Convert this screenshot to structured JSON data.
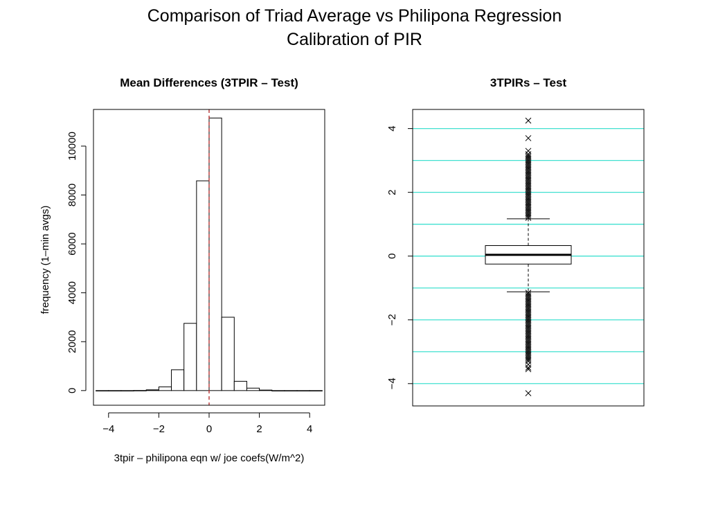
{
  "slide": {
    "title_line1": "Comparison of Triad Average vs Philipona Regression",
    "title_line2": "Calibration of PIR"
  },
  "chart_data": [
    {
      "type": "bar",
      "subtype": "histogram",
      "title": "Mean Differences (3TPIR – Test)",
      "xlabel": "3tpir – philipona eqn w/ joe coefs(W/m^2)",
      "ylabel": "frequency (1–min avgs)",
      "xlim": [
        -4.6,
        4.6
      ],
      "ylim": [
        -600,
        11500
      ],
      "xticks": [
        -4,
        -2,
        0,
        2,
        4
      ],
      "xtick_labels": [
        "−4",
        "−2",
        "0",
        "2",
        "4"
      ],
      "yticks": [
        0,
        2000,
        4000,
        6000,
        8000,
        10000
      ],
      "ytick_labels": [
        "0",
        "2000",
        "4000",
        "6000",
        "8000",
        "10000"
      ],
      "bins": [
        {
          "x0": -4.5,
          "x1": -4.0,
          "count": 0
        },
        {
          "x0": -4.0,
          "x1": -3.5,
          "count": 0
        },
        {
          "x0": -3.5,
          "x1": -3.0,
          "count": 0
        },
        {
          "x0": -3.0,
          "x1": -2.5,
          "count": 5
        },
        {
          "x0": -2.5,
          "x1": -2.0,
          "count": 30
        },
        {
          "x0": -2.0,
          "x1": -1.5,
          "count": 150
        },
        {
          "x0": -1.5,
          "x1": -1.0,
          "count": 850
        },
        {
          "x0": -1.0,
          "x1": -0.5,
          "count": 2750
        },
        {
          "x0": -0.5,
          "x1": 0.0,
          "count": 8580
        },
        {
          "x0": 0.0,
          "x1": 0.5,
          "count": 11150
        },
        {
          "x0": 0.5,
          "x1": 1.0,
          "count": 3000
        },
        {
          "x0": 1.0,
          "x1": 1.5,
          "count": 380
        },
        {
          "x0": 1.5,
          "x1": 2.0,
          "count": 100
        },
        {
          "x0": 2.0,
          "x1": 2.5,
          "count": 20
        },
        {
          "x0": 2.5,
          "x1": 3.0,
          "count": 0
        },
        {
          "x0": 3.0,
          "x1": 3.5,
          "count": 0
        },
        {
          "x0": 3.5,
          "x1": 4.0,
          "count": 0
        },
        {
          "x0": 4.0,
          "x1": 4.5,
          "count": 0
        }
      ],
      "reference_line": {
        "x": 0,
        "style": "dashed",
        "color": "#b22222"
      },
      "grid": false
    },
    {
      "type": "box",
      "title": "3TPIRs – Test",
      "ylim": [
        -4.7,
        4.6
      ],
      "yticks": [
        -4,
        -2,
        0,
        2,
        4
      ],
      "ytick_labels": [
        "−4",
        "−2",
        "0",
        "2",
        "4"
      ],
      "box": {
        "median": 0.04,
        "q1": -0.25,
        "q3": 0.33,
        "whisker_low": -1.12,
        "whisker_high": 1.17
      },
      "outliers_high": [
        1.2,
        1.25,
        1.3,
        1.35,
        1.4,
        1.45,
        1.5,
        1.55,
        1.6,
        1.65,
        1.7,
        1.75,
        1.8,
        1.85,
        1.9,
        1.95,
        2.0,
        2.05,
        2.1,
        2.15,
        2.2,
        2.25,
        2.3,
        2.35,
        2.4,
        2.45,
        2.5,
        2.55,
        2.6,
        2.65,
        2.7,
        2.75,
        2.8,
        2.85,
        2.9,
        2.95,
        3.0,
        3.05,
        3.1,
        3.15,
        3.2,
        3.3,
        3.7,
        4.25
      ],
      "outliers_low": [
        -1.15,
        -1.2,
        -1.25,
        -1.3,
        -1.35,
        -1.4,
        -1.45,
        -1.5,
        -1.55,
        -1.6,
        -1.65,
        -1.7,
        -1.75,
        -1.8,
        -1.85,
        -1.9,
        -1.95,
        -2.0,
        -2.05,
        -2.1,
        -2.15,
        -2.2,
        -2.25,
        -2.3,
        -2.35,
        -2.4,
        -2.45,
        -2.5,
        -2.55,
        -2.6,
        -2.65,
        -2.7,
        -2.75,
        -2.8,
        -2.85,
        -2.9,
        -2.95,
        -3.0,
        -3.05,
        -3.1,
        -3.15,
        -3.2,
        -3.25,
        -3.3,
        -3.4,
        -3.5,
        -3.55,
        -4.3
      ],
      "reference_lines_y": [
        -4,
        -3,
        -2,
        -1,
        0,
        1,
        2,
        3,
        4
      ],
      "reference_line_color": "#40e0d0",
      "outlier_marker": "x"
    }
  ]
}
